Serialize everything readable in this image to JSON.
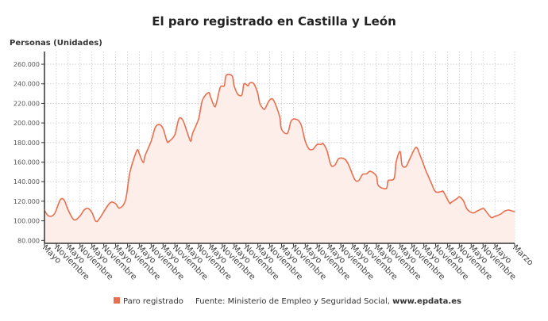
{
  "chart_data": {
    "type": "area",
    "title": "El paro registrado en Castilla y León",
    "ylabel": "Personas (Unidades)",
    "xlabel": "",
    "ylim": [
      77000,
      273000
    ],
    "xlim": [
      "2005-05",
      "2025-03"
    ],
    "grid": true,
    "legend_position": "bottom",
    "yticks": [
      {
        "value": 80000,
        "label": "80.000"
      },
      {
        "value": 100000,
        "label": "100.000"
      },
      {
        "value": 120000,
        "label": "120.000"
      },
      {
        "value": 140000,
        "label": "140.000"
      },
      {
        "value": 160000,
        "label": "160.000"
      },
      {
        "value": 180000,
        "label": "180.000"
      },
      {
        "value": 200000,
        "label": "200.000"
      },
      {
        "value": 220000,
        "label": "220.000"
      },
      {
        "value": 240000,
        "label": "240.000"
      },
      {
        "value": 260000,
        "label": "260.000"
      }
    ],
    "xtick_labels": [
      "Mayo",
      "Noviembre",
      "Mayo",
      "Noviembre",
      "Mayo",
      "Noviembre",
      "Mayo",
      "Noviembre",
      "Mayo",
      "Noviembre",
      "Mayo",
      "Noviembre",
      "Mayo",
      "Noviembre",
      "Mayo",
      "Noviembre",
      "Mayo",
      "Noviembre",
      "Mayo",
      "Noviembre",
      "Mayo",
      "Noviembre",
      "Mayo",
      "Noviembre",
      "Mayo",
      "Noviembre",
      "Mayo",
      "Noviembre",
      "Mayo",
      "Noviembre",
      "Mayo",
      "Noviembre",
      "Mayo",
      "Noviembre",
      "Mayo",
      "Noviembre",
      "Mayo",
      "Noviembre",
      "Mayo",
      "Marzo"
    ],
    "series": [
      {
        "name": "Paro registrado",
        "color": "#e8704f",
        "fill": "#fdeeea",
        "points": [
          [
            "2005-05",
            111000
          ],
          [
            "2005-07",
            105000
          ],
          [
            "2005-10",
            107000
          ],
          [
            "2006-01",
            121500
          ],
          [
            "2006-03",
            121000
          ],
          [
            "2006-05",
            111000
          ],
          [
            "2006-08",
            101000
          ],
          [
            "2006-11",
            105000
          ],
          [
            "2007-01",
            111000
          ],
          [
            "2007-03",
            112600
          ],
          [
            "2007-05",
            108500
          ],
          [
            "2007-07",
            99600
          ],
          [
            "2007-09",
            102800
          ],
          [
            "2008-02",
            118000
          ],
          [
            "2008-05",
            117500
          ],
          [
            "2008-07",
            113000
          ],
          [
            "2008-10",
            121000
          ],
          [
            "2008-12",
            147000
          ],
          [
            "2009-02",
            162000
          ],
          [
            "2009-04",
            172500
          ],
          [
            "2009-05",
            168500
          ],
          [
            "2009-07",
            159600
          ],
          [
            "2009-08",
            167000
          ],
          [
            "2009-11",
            181400
          ],
          [
            "2010-01",
            195000
          ],
          [
            "2010-03",
            198400
          ],
          [
            "2010-05",
            194400
          ],
          [
            "2010-07",
            181400
          ],
          [
            "2010-08",
            181000
          ],
          [
            "2010-11",
            188000
          ],
          [
            "2011-01",
            204000
          ],
          [
            "2011-03",
            203000
          ],
          [
            "2011-05",
            192000
          ],
          [
            "2011-07",
            181400
          ],
          [
            "2011-08",
            189500
          ],
          [
            "2011-11",
            204000
          ],
          [
            "2012-01",
            223500
          ],
          [
            "2012-04",
            231000
          ],
          [
            "2012-05",
            227000
          ],
          [
            "2012-07",
            217000
          ],
          [
            "2012-08",
            220000
          ],
          [
            "2012-10",
            236500
          ],
          [
            "2012-12",
            238000
          ],
          [
            "2013-01",
            248700
          ],
          [
            "2013-04",
            248000
          ],
          [
            "2013-05",
            238000
          ],
          [
            "2013-07",
            229000
          ],
          [
            "2013-09",
            229000
          ],
          [
            "2013-10",
            240000
          ],
          [
            "2013-12",
            238000
          ],
          [
            "2014-01",
            241000
          ],
          [
            "2014-03",
            240000
          ],
          [
            "2014-05",
            230000
          ],
          [
            "2014-06",
            220000
          ],
          [
            "2014-08",
            214000
          ],
          [
            "2014-09",
            216000
          ],
          [
            "2014-11",
            223500
          ],
          [
            "2015-01",
            223000
          ],
          [
            "2015-04",
            207000
          ],
          [
            "2015-05",
            193600
          ],
          [
            "2015-08",
            189500
          ],
          [
            "2015-10",
            202500
          ],
          [
            "2016-01",
            203300
          ],
          [
            "2016-03",
            197600
          ],
          [
            "2016-05",
            181400
          ],
          [
            "2016-07",
            173300
          ],
          [
            "2016-09",
            173300
          ],
          [
            "2016-11",
            178000
          ],
          [
            "2017-01",
            178000
          ],
          [
            "2017-02",
            179000
          ],
          [
            "2017-04",
            171700
          ],
          [
            "2017-06",
            157000
          ],
          [
            "2017-08",
            157000
          ],
          [
            "2017-10",
            163600
          ],
          [
            "2018-01",
            163000
          ],
          [
            "2018-03",
            157000
          ],
          [
            "2018-06",
            142500
          ],
          [
            "2018-08",
            141000
          ],
          [
            "2018-10",
            147400
          ],
          [
            "2018-12",
            148000
          ],
          [
            "2019-02",
            150600
          ],
          [
            "2019-05",
            145800
          ],
          [
            "2019-06",
            136000
          ],
          [
            "2019-10",
            133000
          ],
          [
            "2019-11",
            141000
          ],
          [
            "2020-02",
            143400
          ],
          [
            "2020-03",
            160000
          ],
          [
            "2020-05",
            171000
          ],
          [
            "2020-06",
            157000
          ],
          [
            "2020-08",
            155500
          ],
          [
            "2020-10",
            163600
          ],
          [
            "2021-01",
            175000
          ],
          [
            "2021-03",
            167700
          ],
          [
            "2021-06",
            151500
          ],
          [
            "2021-07",
            147000
          ],
          [
            "2021-09",
            137700
          ],
          [
            "2021-11",
            129600
          ],
          [
            "2022-02",
            130000
          ],
          [
            "2022-03",
            129600
          ],
          [
            "2022-06",
            118300
          ],
          [
            "2022-07",
            119000
          ],
          [
            "2022-10",
            123000
          ],
          [
            "2022-11",
            124600
          ],
          [
            "2023-01",
            120700
          ],
          [
            "2023-03",
            111800
          ],
          [
            "2023-06",
            108000
          ],
          [
            "2023-08",
            110000
          ],
          [
            "2023-11",
            112600
          ],
          [
            "2023-12",
            111000
          ],
          [
            "2024-03",
            103600
          ],
          [
            "2024-05",
            104500
          ],
          [
            "2024-08",
            107000
          ],
          [
            "2024-10",
            110000
          ],
          [
            "2024-12",
            111000
          ],
          [
            "2025-03",
            109300
          ]
        ]
      }
    ]
  },
  "legend": {
    "series_label": "Paro registrado",
    "source_label": "Fuente: Ministerio de Empleo y Seguridad Social,",
    "source_site": "www.epdata.es"
  }
}
